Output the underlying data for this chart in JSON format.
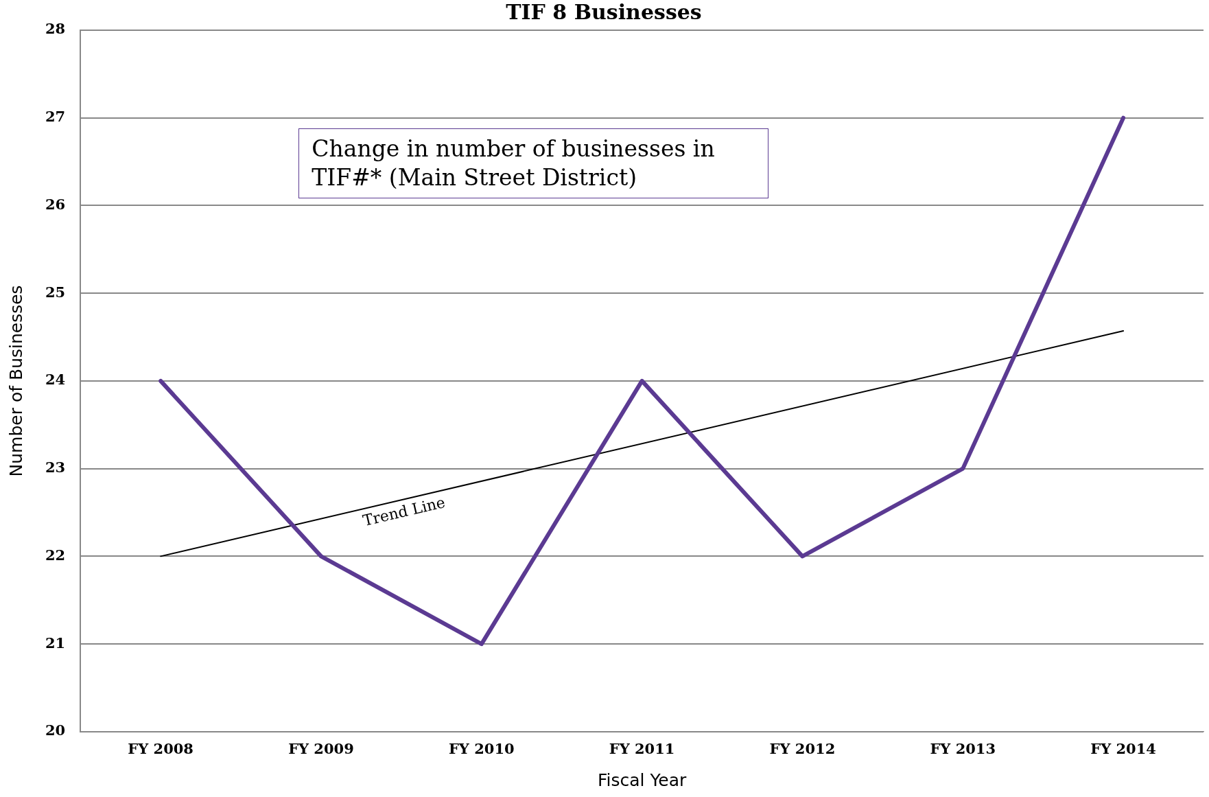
{
  "chart_data": {
    "type": "line",
    "title": "TIF 8 Businesses",
    "xlabel": "Fiscal Year",
    "ylabel": "Number of Businesses",
    "categories": [
      "FY 2008",
      "FY 2009",
      "FY 2010",
      "FY 2011",
      "FY 2012",
      "FY 2013",
      "FY 2014"
    ],
    "series": [
      {
        "color": "#5b3a92",
        "values": [
          24,
          22,
          21,
          24,
          22,
          23,
          27
        ]
      },
      {
        "type": "line",
        "color": "#000000",
        "x": [
          "FY 2008",
          "FY 2014"
        ],
        "values": [
          22,
          24.57
        ]
      }
    ],
    "ylim": [
      20,
      28
    ],
    "yticks": [
      20,
      21,
      22,
      23,
      24,
      25,
      26,
      27,
      28
    ],
    "grid": "y",
    "legend": false,
    "marker": "none",
    "line_style": "solid",
    "annotations": [
      "Change in number of businesses in TIF#* (Main Street District)",
      "Trend Line"
    ]
  }
}
